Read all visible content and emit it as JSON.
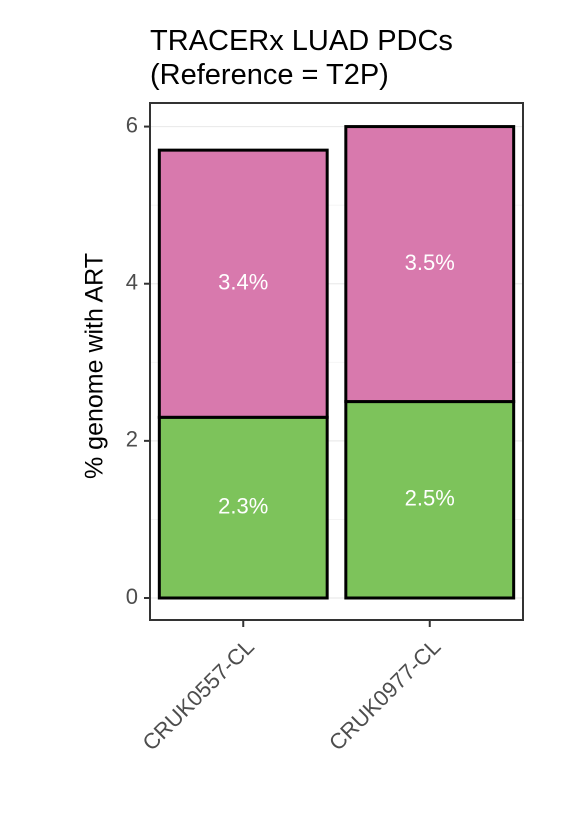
{
  "chart_data": {
    "type": "bar",
    "stacked": true,
    "title": "TRACERx LUAD PDCs",
    "subtitle": "(Reference = T2P)",
    "xlabel": "",
    "ylabel": "% genome with ART",
    "categories": [
      "CRUK0557-CL",
      "CRUK0977-CL"
    ],
    "ylim": [
      -0.28,
      6.3
    ],
    "yticks": [
      0,
      2,
      4,
      6
    ],
    "grid": true,
    "legend": "none",
    "series": [
      {
        "values": [
          2.3,
          2.5
        ],
        "labels": [
          "2.3%",
          "2.5%"
        ],
        "color": "#7dc35b"
      },
      {
        "values": [
          3.4,
          3.5
        ],
        "labels": [
          "3.4%",
          "3.5%"
        ],
        "color": "#d879ad"
      }
    ]
  }
}
